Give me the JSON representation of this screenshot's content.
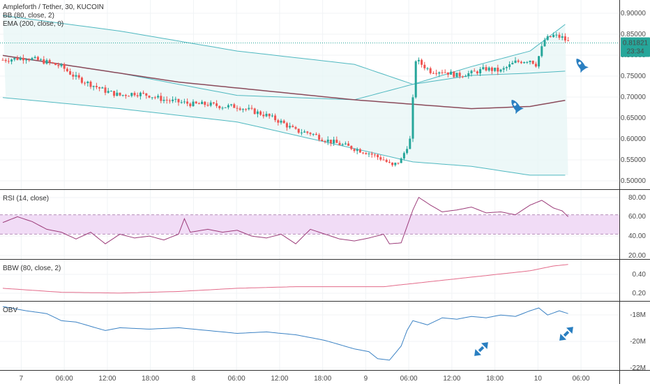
{
  "header": {
    "symbol_title": "Ampleforth / Tether, 30, KUCOIN",
    "bb_label": "BB (80, close, 2)",
    "ema_label": "EMA (200, close, 0)"
  },
  "price_badge": {
    "value": "0.81821",
    "countdown": "23:34",
    "color": "#26a69a"
  },
  "panes": {
    "rsi_label": "RSI (14, close)",
    "bbw_label": "BBW (80, close, 2)",
    "obv_label": "OBV"
  },
  "colors": {
    "up": "#26a69a",
    "down": "#ef5350",
    "bb": "#4fb8c0",
    "bb_fill": "#e8f6f6",
    "ema": "#8a4a5a",
    "rsi": "#9c3c7a",
    "rsi_band": "#f1dcf6",
    "bbw": "#e36b8a",
    "obv": "#3b82c4",
    "icon": "#2a7fc1"
  },
  "icons": [
    "rocket-icon",
    "rocket-icon",
    "diagonal-arrows-icon",
    "diagonal-arrows-icon"
  ],
  "chart_data": [
    {
      "type": "candlestick",
      "title": "Ampleforth / Tether, 30, KUCOIN",
      "x_tick_labels": [
        "7",
        "06:00",
        "12:00",
        "18:00",
        "8",
        "06:00",
        "12:00",
        "18:00",
        "9",
        "06:00",
        "12:00",
        "18:00",
        "10",
        "06:00"
      ],
      "y_tick_labels": [
        "0.90000",
        "0.85000",
        "0.80000",
        "0.75000",
        "0.70000",
        "0.65000",
        "0.60000",
        "0.55000",
        "0.50000"
      ],
      "ylim": [
        0.49,
        0.915
      ],
      "last_price": 0.81821,
      "close_path": [
        [
          0,
          0.78
        ],
        [
          8,
          0.785
        ],
        [
          15,
          0.775
        ],
        [
          20,
          0.765
        ],
        [
          25,
          0.74
        ],
        [
          30,
          0.725
        ],
        [
          35,
          0.71
        ],
        [
          40,
          0.7
        ],
        [
          45,
          0.705
        ],
        [
          50,
          0.7
        ],
        [
          55,
          0.69
        ],
        [
          60,
          0.685
        ],
        [
          65,
          0.68
        ],
        [
          70,
          0.68
        ],
        [
          75,
          0.675
        ],
        [
          80,
          0.675
        ],
        [
          85,
          0.665
        ],
        [
          90,
          0.655
        ],
        [
          95,
          0.64
        ],
        [
          100,
          0.62
        ],
        [
          105,
          0.615
        ],
        [
          110,
          0.6
        ],
        [
          115,
          0.59
        ],
        [
          120,
          0.58
        ],
        [
          125,
          0.57
        ],
        [
          130,
          0.555
        ],
        [
          133,
          0.54
        ],
        [
          136,
          0.555
        ],
        [
          139,
          0.6
        ],
        [
          141,
          0.78
        ],
        [
          143,
          0.77
        ],
        [
          146,
          0.755
        ],
        [
          150,
          0.755
        ],
        [
          155,
          0.745
        ],
        [
          160,
          0.75
        ],
        [
          165,
          0.76
        ],
        [
          170,
          0.755
        ],
        [
          175,
          0.775
        ],
        [
          180,
          0.78
        ],
        [
          182,
          0.77
        ],
        [
          185,
          0.825
        ],
        [
          188,
          0.835
        ],
        [
          191,
          0.83
        ],
        [
          193,
          0.82
        ]
      ],
      "bb_upper": [
        [
          0,
          0.88
        ],
        [
          40,
          0.845
        ],
        [
          80,
          0.8
        ],
        [
          120,
          0.77
        ],
        [
          140,
          0.725
        ],
        [
          160,
          0.765
        ],
        [
          180,
          0.8
        ],
        [
          193,
          0.865
        ]
      ],
      "bb_basis": [
        [
          0,
          0.79
        ],
        [
          40,
          0.75
        ],
        [
          80,
          0.7
        ],
        [
          120,
          0.69
        ],
        [
          140,
          0.725
        ],
        [
          160,
          0.745
        ],
        [
          180,
          0.75
        ],
        [
          193,
          0.755
        ]
      ],
      "bb_lower": [
        [
          0,
          0.695
        ],
        [
          40,
          0.67
        ],
        [
          80,
          0.64
        ],
        [
          130,
          0.565
        ],
        [
          140,
          0.55
        ],
        [
          160,
          0.54
        ],
        [
          180,
          0.52
        ],
        [
          193,
          0.52
        ]
      ],
      "ema": [
        [
          0,
          0.79
        ],
        [
          30,
          0.76
        ],
        [
          60,
          0.73
        ],
        [
          90,
          0.71
        ],
        [
          120,
          0.69
        ],
        [
          140,
          0.68
        ],
        [
          160,
          0.67
        ],
        [
          180,
          0.675
        ],
        [
          193,
          0.69
        ]
      ]
    },
    {
      "type": "line",
      "title": "RSI (14, close)",
      "y_tick_labels": [
        "80.00",
        "60.00",
        "40.00",
        "20.00"
      ],
      "ylim": [
        15,
        85
      ],
      "band": [
        40,
        60
      ],
      "series": [
        {
          "values": [
            [
              0,
              52
            ],
            [
              5,
              58
            ],
            [
              10,
              53
            ],
            [
              15,
              45
            ],
            [
              20,
              42
            ],
            [
              25,
              35
            ],
            [
              30,
              42
            ],
            [
              35,
              30
            ],
            [
              40,
              40
            ],
            [
              45,
              36
            ],
            [
              50,
              38
            ],
            [
              55,
              34
            ],
            [
              60,
              40
            ],
            [
              62,
              56
            ],
            [
              64,
              42
            ],
            [
              70,
              45
            ],
            [
              75,
              42
            ],
            [
              80,
              44
            ],
            [
              85,
              38
            ],
            [
              90,
              36
            ],
            [
              95,
              40
            ],
            [
              100,
              30
            ],
            [
              105,
              45
            ],
            [
              110,
              40
            ],
            [
              115,
              35
            ],
            [
              120,
              33
            ],
            [
              125,
              36
            ],
            [
              130,
              40
            ],
            [
              132,
              30
            ],
            [
              136,
              31
            ],
            [
              140,
              65
            ],
            [
              142,
              78
            ],
            [
              146,
              70
            ],
            [
              150,
              63
            ],
            [
              155,
              65
            ],
            [
              160,
              68
            ],
            [
              165,
              62
            ],
            [
              170,
              63
            ],
            [
              175,
              60
            ],
            [
              180,
              70
            ],
            [
              184,
              75
            ],
            [
              188,
              67
            ],
            [
              191,
              64
            ],
            [
              193,
              58
            ]
          ]
        }
      ]
    },
    {
      "type": "line",
      "title": "BBW (80, close, 2)",
      "y_tick_labels": [
        "0.40",
        "0.20"
      ],
      "ylim": [
        0.05,
        0.55
      ],
      "series": [
        {
          "values": [
            [
              0,
              0.2
            ],
            [
              20,
              0.15
            ],
            [
              40,
              0.14
            ],
            [
              60,
              0.16
            ],
            [
              80,
              0.2
            ],
            [
              100,
              0.22
            ],
            [
              120,
              0.22
            ],
            [
              130,
              0.22
            ],
            [
              140,
              0.26
            ],
            [
              150,
              0.3
            ],
            [
              160,
              0.34
            ],
            [
              170,
              0.38
            ],
            [
              180,
              0.42
            ],
            [
              188,
              0.48
            ],
            [
              193,
              0.5
            ]
          ]
        }
      ]
    },
    {
      "type": "line",
      "title": "OBV",
      "y_tick_labels": [
        "-18M",
        "-20M",
        "-22M"
      ],
      "ylim": [
        -22.3,
        -17.5
      ],
      "series": [
        {
          "values": [
            [
              0,
              -17.8
            ],
            [
              8,
              -18.1
            ],
            [
              15,
              -18.3
            ],
            [
              20,
              -18.8
            ],
            [
              25,
              -18.9
            ],
            [
              30,
              -19.2
            ],
            [
              35,
              -19.5
            ],
            [
              40,
              -19.3
            ],
            [
              50,
              -19.4
            ],
            [
              60,
              -19.3
            ],
            [
              70,
              -19.5
            ],
            [
              80,
              -19.7
            ],
            [
              90,
              -19.6
            ],
            [
              100,
              -19.8
            ],
            [
              110,
              -20.2
            ],
            [
              115,
              -20.5
            ],
            [
              120,
              -20.8
            ],
            [
              125,
              -21.0
            ],
            [
              128,
              -21.5
            ],
            [
              132,
              -21.6
            ],
            [
              136,
              -20.6
            ],
            [
              138,
              -19.5
            ],
            [
              140,
              -18.8
            ],
            [
              145,
              -19.1
            ],
            [
              150,
              -18.6
            ],
            [
              155,
              -18.7
            ],
            [
              160,
              -18.5
            ],
            [
              165,
              -18.6
            ],
            [
              170,
              -18.4
            ],
            [
              175,
              -18.5
            ],
            [
              180,
              -18.1
            ],
            [
              183,
              -17.9
            ],
            [
              186,
              -18.4
            ],
            [
              190,
              -18.1
            ],
            [
              193,
              -18.3
            ]
          ]
        }
      ]
    }
  ]
}
